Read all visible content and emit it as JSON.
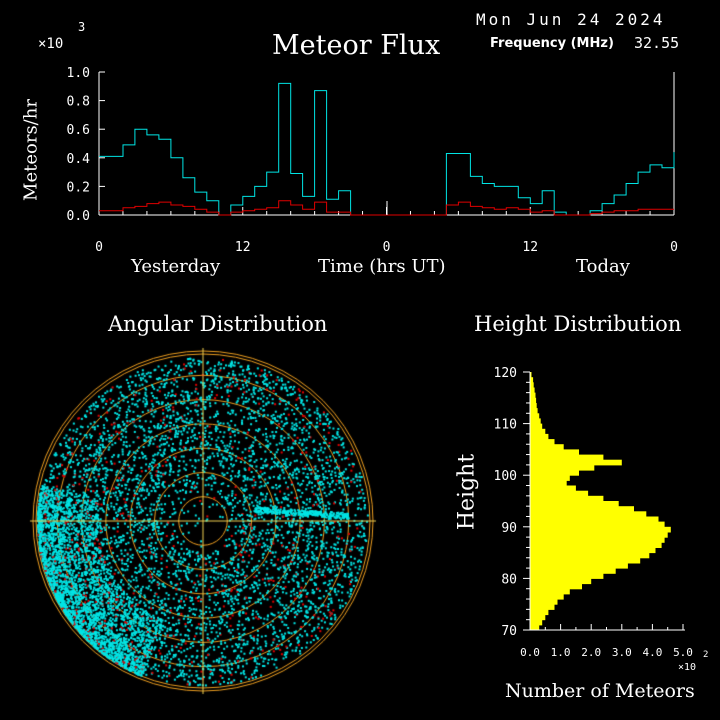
{
  "header": {
    "date": "Mon Jun 24 2024",
    "freq_label": "Frequency (MHz)",
    "freq_value": "32.55",
    "scale_base": "×10",
    "scale_exp": "3"
  },
  "chart_data": [
    {
      "type": "line",
      "title": "Meteor Flux",
      "ylabel": "Meteors/hr",
      "xlabel": "Time (hrs UT)",
      "day_labels": [
        "Yesterday",
        "Today"
      ],
      "ylim": [
        0,
        1.0
      ],
      "yticks": [
        "0.0",
        "0.2",
        "0.4",
        "0.6",
        "0.8",
        "1.0"
      ],
      "xlim": [
        0,
        48
      ],
      "xticks": [
        0,
        12,
        24,
        36,
        48
      ],
      "xtick_labels": [
        "0",
        "12",
        "0",
        "12",
        "0"
      ],
      "colors": {
        "series_main": "#00e5e5",
        "series_sub": "#e00000",
        "axes": "#ffffff"
      },
      "series": [
        {
          "values": [
            0.41,
            0.41,
            0.49,
            0.6,
            0.56,
            0.53,
            0.4,
            0.26,
            0.16,
            0.1,
            0.0,
            0.07,
            0.13,
            0.2,
            0.3,
            0.92,
            0.29,
            0.13,
            0.87,
            0.11,
            0.17,
            0.0,
            0.0,
            0.0,
            0.0,
            0.0,
            0.0,
            0.0,
            0.0,
            0.43,
            0.43,
            0.27,
            0.22,
            0.2,
            0.2,
            0.12,
            0.08,
            0.17,
            0.02,
            0.0,
            0.0,
            0.03,
            0.08,
            0.14,
            0.22,
            0.3,
            0.35,
            0.33,
            0.44
          ]
        },
        {
          "values": [
            0.03,
            0.03,
            0.05,
            0.06,
            0.08,
            0.09,
            0.07,
            0.06,
            0.04,
            0.02,
            0.0,
            0.02,
            0.03,
            0.04,
            0.05,
            0.1,
            0.07,
            0.04,
            0.09,
            0.02,
            0.02,
            0.0,
            0.0,
            0.0,
            0.0,
            0.0,
            0.0,
            0.0,
            0.0,
            0.07,
            0.09,
            0.06,
            0.05,
            0.04,
            0.05,
            0.04,
            0.02,
            0.03,
            0.0,
            0.0,
            0.0,
            0.01,
            0.02,
            0.03,
            0.03,
            0.04,
            0.04,
            0.04,
            0.04
          ]
        }
      ]
    },
    {
      "type": "scatter",
      "title": "Angular Distribution",
      "colors": {
        "points_main": "#00e5e5",
        "points_sub": "#e00000",
        "rings": "#f0a020",
        "grid": "#f0d050"
      },
      "ring_count": 7,
      "note_points": "dense cloud; heavier toward lower-left edge"
    },
    {
      "type": "bar",
      "orientation": "horizontal",
      "title": "Height Distribution",
      "ylabel": "Height",
      "xlabel": "Number of Meteors",
      "xscale_base": "×10",
      "xscale_exp": "2",
      "ylim": [
        70,
        120
      ],
      "yticks": [
        70,
        80,
        90,
        100,
        110,
        120
      ],
      "xlim": [
        0,
        5.0
      ],
      "xtick_labels": [
        "0.0",
        "1.0",
        "2.0",
        "3.0",
        "4.0",
        "5.0"
      ],
      "bar_color": "#ffff00",
      "heights": [
        70,
        71,
        72,
        73,
        74,
        75,
        76,
        77,
        78,
        79,
        80,
        81,
        82,
        83,
        84,
        85,
        86,
        87,
        88,
        89,
        90,
        91,
        92,
        93,
        94,
        95,
        96,
        97,
        98,
        99,
        100,
        101,
        102,
        103,
        104,
        105,
        106,
        107,
        108,
        109,
        110,
        111,
        112,
        113,
        114,
        115,
        116,
        117,
        118,
        119
      ],
      "counts": [
        0.3,
        0.4,
        0.5,
        0.6,
        0.8,
        0.9,
        1.1,
        1.3,
        1.7,
        2.0,
        2.4,
        2.8,
        3.2,
        3.6,
        3.9,
        4.1,
        4.3,
        4.4,
        4.5,
        4.6,
        4.4,
        4.2,
        3.8,
        3.4,
        2.9,
        2.4,
        1.9,
        1.5,
        1.2,
        1.3,
        1.6,
        2.1,
        3.0,
        2.4,
        1.6,
        1.1,
        0.8,
        0.6,
        0.5,
        0.4,
        0.35,
        0.3,
        0.25,
        0.22,
        0.2,
        0.18,
        0.15,
        0.12,
        0.1,
        0.05
      ]
    }
  ]
}
